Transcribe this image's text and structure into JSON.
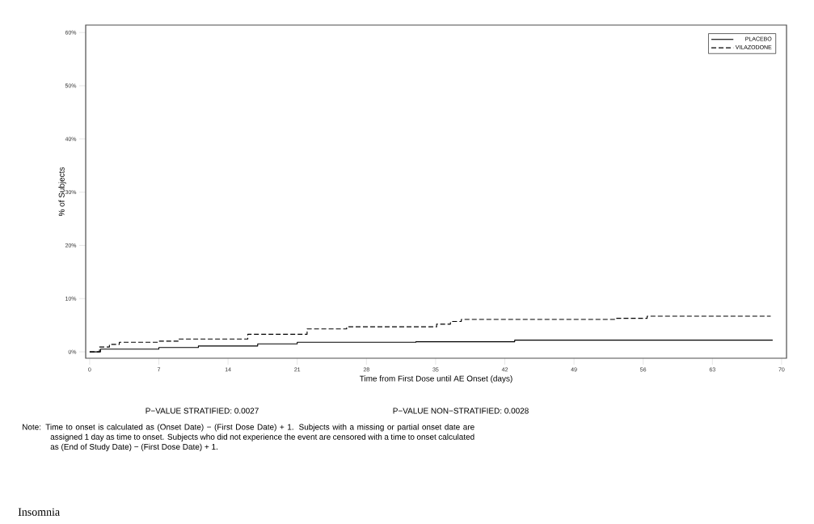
{
  "chart_data": {
    "type": "step",
    "xlabel": "Time from First Dose until AE Onset (days)",
    "ylabel": "% of Subjects",
    "xlim": [
      -0.4,
      70.5
    ],
    "ylim": [
      -1.2,
      61.4
    ],
    "xticks": [
      0,
      7,
      14,
      21,
      28,
      35,
      42,
      49,
      56,
      63,
      70
    ],
    "yticks": [
      {
        "value": 0,
        "label": "0%"
      },
      {
        "value": 10,
        "label": "10%"
      },
      {
        "value": 20,
        "label": "20%"
      },
      {
        "value": 30,
        "label": "30%"
      },
      {
        "value": 40,
        "label": "40%"
      },
      {
        "value": 50,
        "label": "50%"
      },
      {
        "value": 60,
        "label": "60%"
      }
    ],
    "grid": false,
    "legend": "top right",
    "series": [
      {
        "name": "PLACEBO",
        "color": "#000000",
        "line_style": "solid",
        "x": [
          0,
          1.1,
          7,
          11,
          17,
          21,
          33,
          43,
          69.1
        ],
        "values": [
          0,
          0.5,
          0.8,
          1.1,
          1.5,
          1.8,
          1.9,
          2.2,
          2.2
        ]
      },
      {
        "name": "VILAZODONE",
        "color": "#000000",
        "line_style": "dashed",
        "x": [
          0,
          1,
          2,
          3,
          7,
          9,
          16,
          22,
          26,
          35.1,
          36.5,
          37.6,
          53.1,
          56.4,
          68.9
        ],
        "values": [
          0,
          0.9,
          1.4,
          1.8,
          2.0,
          2.4,
          3.3,
          4.3,
          4.7,
          5.2,
          5.7,
          6.1,
          6.3,
          6.7,
          6.7
        ]
      }
    ],
    "annotations": [
      "P−VALUE STRATIFIED: 0.0027",
      "P−VALUE NON−STRATIFIED: 0.0028",
      "Note: Time to onset is calculated as (Onset Date) − (First Dose Date) + 1.  Subjects with a missing or partial onset date are assigned 1 day as time to onset.  Subjects who did not experience the event are censored with a time to onset calculated as (End of Study Date) − (First Dose Date) + 1.",
      "Insomnia"
    ]
  }
}
